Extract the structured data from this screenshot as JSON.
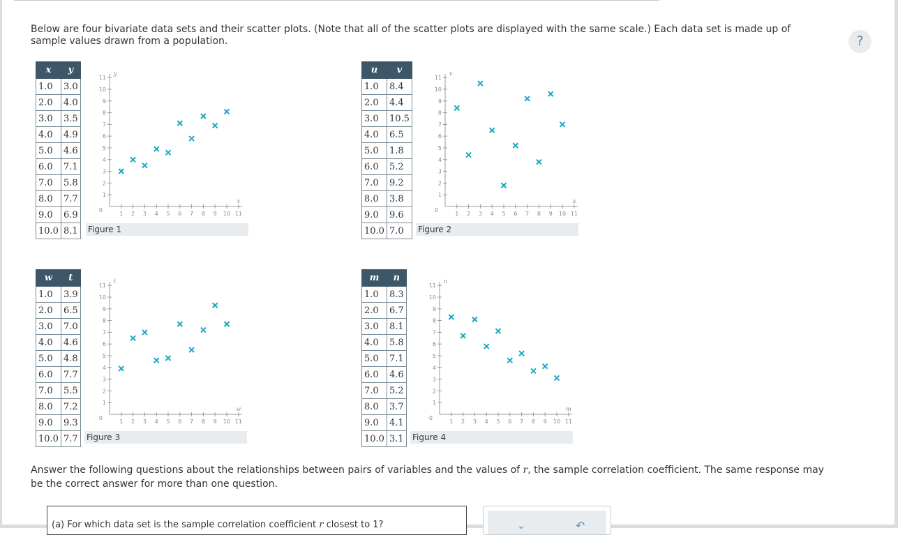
{
  "intro": "Below are four bivariate data sets and their scatter plots. (Note that all of the scatter plots are displayed with the same scale.) Each data set is made up of sample values drawn from a population.",
  "help_label": "?",
  "figures": [
    {
      "label": "Figure 1",
      "col1": "x",
      "col2": "y",
      "rows": [
        [
          "1.0",
          "3.0"
        ],
        [
          "2.0",
          "4.0"
        ],
        [
          "3.0",
          "3.5"
        ],
        [
          "4.0",
          "4.9"
        ],
        [
          "5.0",
          "4.6"
        ],
        [
          "6.0",
          "7.1"
        ],
        [
          "7.0",
          "5.8"
        ],
        [
          "8.0",
          "7.7"
        ],
        [
          "9.0",
          "6.9"
        ],
        [
          "10.0",
          "8.1"
        ]
      ]
    },
    {
      "label": "Figure 2",
      "col1": "u",
      "col2": "v",
      "rows": [
        [
          "1.0",
          "8.4"
        ],
        [
          "2.0",
          "4.4"
        ],
        [
          "3.0",
          "10.5"
        ],
        [
          "4.0",
          "6.5"
        ],
        [
          "5.0",
          "1.8"
        ],
        [
          "6.0",
          "5.2"
        ],
        [
          "7.0",
          "9.2"
        ],
        [
          "8.0",
          "3.8"
        ],
        [
          "9.0",
          "9.6"
        ],
        [
          "10.0",
          "7.0"
        ]
      ]
    },
    {
      "label": "Figure 3",
      "col1": "w",
      "col2": "t",
      "rows": [
        [
          "1.0",
          "3.9"
        ],
        [
          "2.0",
          "6.5"
        ],
        [
          "3.0",
          "7.0"
        ],
        [
          "4.0",
          "4.6"
        ],
        [
          "5.0",
          "4.8"
        ],
        [
          "6.0",
          "7.7"
        ],
        [
          "7.0",
          "5.5"
        ],
        [
          "8.0",
          "7.2"
        ],
        [
          "9.0",
          "9.3"
        ],
        [
          "10.0",
          "7.7"
        ]
      ]
    },
    {
      "label": "Figure 4",
      "col1": "m",
      "col2": "n",
      "rows": [
        [
          "1.0",
          "8.3"
        ],
        [
          "2.0",
          "6.7"
        ],
        [
          "3.0",
          "8.1"
        ],
        [
          "4.0",
          "5.8"
        ],
        [
          "5.0",
          "7.1"
        ],
        [
          "6.0",
          "4.6"
        ],
        [
          "7.0",
          "5.2"
        ],
        [
          "8.0",
          "3.7"
        ],
        [
          "9.0",
          "4.1"
        ],
        [
          "10.0",
          "3.1"
        ]
      ]
    }
  ],
  "chart_data": [
    {
      "type": "scatter",
      "xlabel": "x",
      "ylabel": "y",
      "xlim": [
        0,
        11
      ],
      "ylim": [
        0,
        11
      ],
      "x": [
        1,
        2,
        3,
        4,
        5,
        6,
        7,
        8,
        9,
        10
      ],
      "y": [
        3.0,
        4.0,
        3.5,
        4.9,
        4.6,
        7.1,
        5.8,
        7.7,
        6.9,
        8.1
      ]
    },
    {
      "type": "scatter",
      "xlabel": "u",
      "ylabel": "v",
      "xlim": [
        0,
        11
      ],
      "ylim": [
        0,
        11
      ],
      "x": [
        1,
        2,
        3,
        4,
        5,
        6,
        7,
        8,
        9,
        10
      ],
      "y": [
        8.4,
        4.4,
        10.5,
        6.5,
        1.8,
        5.2,
        9.2,
        3.8,
        9.6,
        7.0
      ]
    },
    {
      "type": "scatter",
      "xlabel": "w",
      "ylabel": "t",
      "xlim": [
        0,
        11
      ],
      "ylim": [
        0,
        11
      ],
      "x": [
        1,
        2,
        3,
        4,
        5,
        6,
        7,
        8,
        9,
        10
      ],
      "y": [
        3.9,
        6.5,
        7.0,
        4.6,
        4.8,
        7.7,
        5.5,
        7.2,
        9.3,
        7.7
      ]
    },
    {
      "type": "scatter",
      "xlabel": "m",
      "ylabel": "n",
      "xlim": [
        0,
        11
      ],
      "ylim": [
        0,
        11
      ],
      "x": [
        1,
        2,
        3,
        4,
        5,
        6,
        7,
        8,
        9,
        10
      ],
      "y": [
        8.3,
        6.7,
        8.1,
        5.8,
        7.1,
        4.6,
        5.2,
        3.7,
        4.1,
        3.1
      ]
    }
  ],
  "tick_labels": [
    "0",
    "1",
    "2",
    "3",
    "4",
    "5",
    "6",
    "7",
    "8",
    "9",
    "10",
    "11"
  ],
  "marker_color": "#1aa8c4",
  "answer_prefix": "Answer the following questions about the relationships between pairs of variables and the values of",
  "answer_r": "r",
  "answer_suffix": ", the sample correlation coefficient. The same response may be the correct answer for more than one question.",
  "question_a_prefix": "(a)   For which data set is the sample correlation coefficient",
  "question_a_r": "r",
  "question_a_suffix": "closest to 1?"
}
